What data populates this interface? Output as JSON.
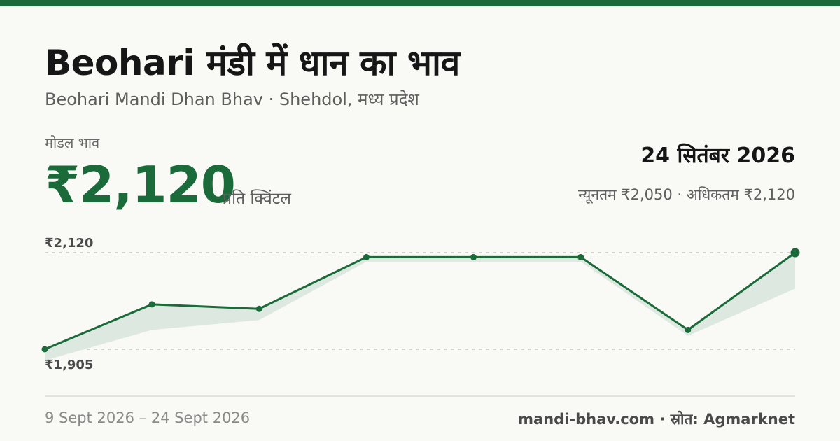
{
  "header": {
    "title": "Beohari मंडी में धान का भाव",
    "subtitle": "Beohari Mandi Dhan Bhav · Shehdol, मध्य प्रदेश"
  },
  "price": {
    "label": "मोडल भाव",
    "value": "₹2,120",
    "unit": "प्रति क्विंटल"
  },
  "date": "24 सितंबर 2026",
  "range_text": "न्यूनतम ₹2,050 · अधिकतम ₹2,120",
  "footer": {
    "period": "9 Sept 2026 – 24 Sept 2026",
    "source": "mandi-bhav.com · स्रोत: Agmarknet"
  },
  "colors": {
    "accent": "#1a6a3a",
    "band_fill": "#dde8e0",
    "gridline": "#bdbdb8"
  },
  "chart_data": {
    "type": "line",
    "y_labels": [
      "₹2,120",
      "₹1,905"
    ],
    "ylim": [
      1905,
      2120
    ],
    "grid": false,
    "legend": "none",
    "series": [
      {
        "values": [
          1905,
          2005,
          1995,
          2110,
          2110,
          2110,
          1948,
          2120
        ]
      }
    ],
    "band_lower": [
      1880,
      1948,
      1970,
      2100,
      2100,
      2100,
      1935,
      2040
    ]
  }
}
